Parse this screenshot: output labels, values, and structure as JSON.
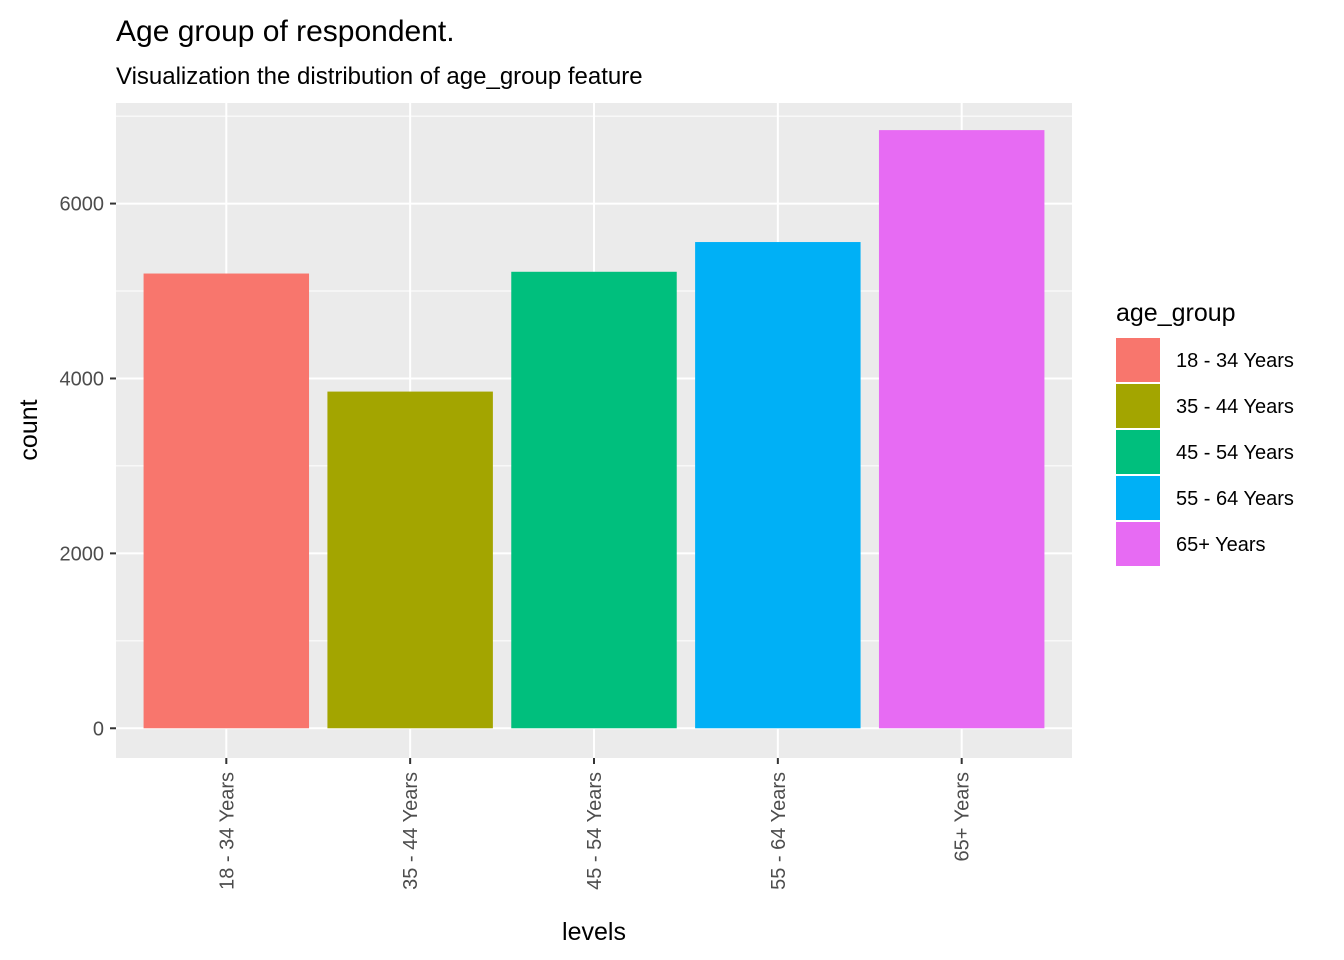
{
  "chart_data": {
    "type": "bar",
    "title": "Age group of respondent.",
    "subtitle": "Visualization the distribution of age_group feature",
    "xlabel": "levels",
    "ylabel": "count",
    "categories": [
      "18 - 34 Years",
      "35 - 44 Years",
      "45 - 54 Years",
      "55 - 64 Years",
      "65+ Years"
    ],
    "values": [
      5200,
      3850,
      5220,
      5560,
      6840
    ],
    "colors": [
      "#F8766D",
      "#A3A500",
      "#00BF7D",
      "#00B0F6",
      "#E76BF3"
    ],
    "yticks": [
      0,
      2000,
      4000,
      6000
    ],
    "ytick_labels": [
      "0",
      "2000",
      "4000",
      "6000"
    ],
    "ylim": [
      -340,
      7150
    ],
    "grid": true,
    "panel_background": "#EBEBEB",
    "grid_color": "#FFFFFF",
    "x_tick_rotation": "vertical",
    "legend": {
      "title": "age_group",
      "position": "right",
      "items": [
        "18 - 34 Years",
        "35 - 44 Years",
        "45 - 54 Years",
        "55 - 64 Years",
        "65+ Years"
      ]
    }
  }
}
